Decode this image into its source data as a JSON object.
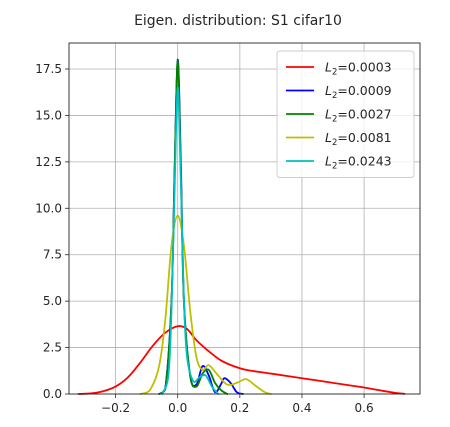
{
  "chart_data": {
    "type": "line",
    "title": "Eigen. distribution: S1 cifar10",
    "xlabel": "",
    "ylabel": "",
    "xlim": [
      -0.35,
      0.78
    ],
    "ylim": [
      0,
      18.9
    ],
    "x_ticks": [
      -0.2,
      0.0,
      0.2,
      0.4,
      0.6
    ],
    "x_tick_labels": [
      "−0.2",
      "0.0",
      "0.2",
      "0.4",
      "0.6"
    ],
    "y_ticks": [
      0,
      2.5,
      5,
      7.5,
      10,
      12.5,
      15,
      17.5
    ],
    "y_tick_labels": [
      "0.0",
      "2.5",
      "5.0",
      "7.5",
      "10.0",
      "12.5",
      "15.0",
      "17.5"
    ],
    "grid": true,
    "legend_position": "top-right",
    "series": [
      {
        "name": "L2=0.0003",
        "legend_base": "L",
        "legend_sub": "2",
        "legend_value": "=0.0003",
        "color": "#ff0000",
        "x": [
          -0.32,
          -0.28,
          -0.24,
          -0.2,
          -0.16,
          -0.12,
          -0.08,
          -0.04,
          0.0,
          0.03,
          0.06,
          0.1,
          0.14,
          0.18,
          0.22,
          0.3,
          0.4,
          0.5,
          0.6,
          0.65,
          0.7,
          0.73
        ],
        "y": [
          0.0,
          0.03,
          0.15,
          0.4,
          0.9,
          1.7,
          2.6,
          3.3,
          3.65,
          3.5,
          2.9,
          2.3,
          1.8,
          1.5,
          1.3,
          1.1,
          0.85,
          0.6,
          0.35,
          0.2,
          0.06,
          0.01
        ]
      },
      {
        "name": "L2=0.0009",
        "legend_base": "L",
        "legend_sub": "2",
        "legend_value": "=0.0009",
        "color": "#0000ff",
        "x": [
          -0.06,
          -0.04,
          -0.02,
          -0.01,
          0.0,
          0.01,
          0.02,
          0.04,
          0.06,
          0.08,
          0.1,
          0.12,
          0.14,
          0.15,
          0.17,
          0.19,
          0.21
        ],
        "y": [
          0.0,
          0.3,
          5.0,
          12.0,
          18.0,
          12.5,
          5.0,
          1.0,
          0.5,
          1.5,
          1.0,
          0.1,
          0.55,
          0.85,
          0.6,
          0.1,
          0.0
        ]
      },
      {
        "name": "L2=0.0027",
        "legend_base": "L",
        "legend_sub": "2",
        "legend_value": "=0.0027",
        "color": "#008000",
        "x": [
          -0.06,
          -0.04,
          -0.02,
          -0.01,
          0.0,
          0.01,
          0.02,
          0.04,
          0.06,
          0.08,
          0.1,
          0.12,
          0.14,
          0.16
        ],
        "y": [
          0.0,
          0.25,
          5.0,
          12.0,
          17.95,
          12.0,
          5.0,
          1.0,
          0.4,
          1.1,
          1.3,
          0.6,
          0.2,
          0.0
        ]
      },
      {
        "name": "L2=0.0081",
        "legend_base": "L",
        "legend_sub": "2",
        "legend_value": "=0.0081",
        "color": "#bfbf00",
        "x": [
          -0.12,
          -0.09,
          -0.06,
          -0.04,
          -0.02,
          0.0,
          0.02,
          0.04,
          0.06,
          0.08,
          0.1,
          0.13,
          0.16,
          0.19,
          0.22,
          0.25,
          0.28,
          0.3
        ],
        "y": [
          0.0,
          0.2,
          1.5,
          4.0,
          8.0,
          9.6,
          8.0,
          4.5,
          2.0,
          1.3,
          1.55,
          1.0,
          0.5,
          0.6,
          0.8,
          0.45,
          0.1,
          0.0
        ]
      },
      {
        "name": "L2=0.0243",
        "legend_base": "L",
        "legend_sub": "2",
        "legend_value": "=0.0243",
        "color": "#00bfbf",
        "x": [
          -0.05,
          -0.03,
          -0.02,
          -0.01,
          0.0,
          0.01,
          0.02,
          0.03,
          0.05,
          0.07,
          0.09,
          0.11,
          0.13
        ],
        "y": [
          0.0,
          1.0,
          4.5,
          11.0,
          16.5,
          11.5,
          5.0,
          2.0,
          0.7,
          0.9,
          1.0,
          0.4,
          0.0
        ]
      }
    ]
  }
}
